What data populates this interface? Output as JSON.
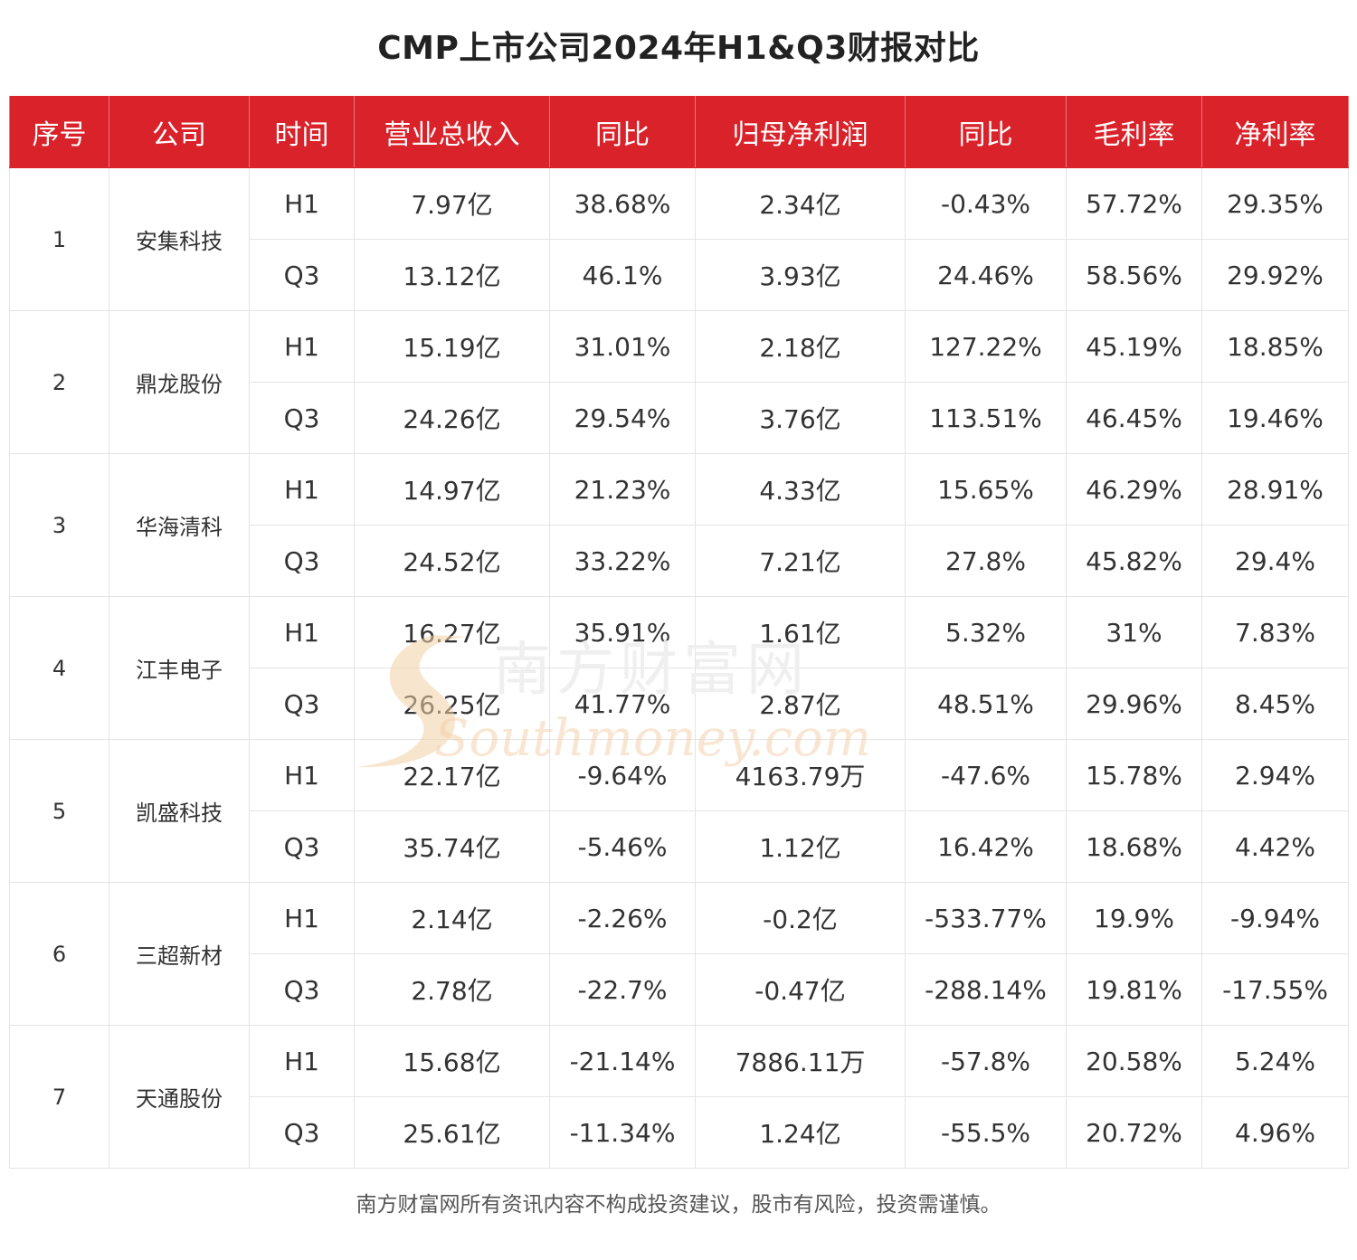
{
  "chart_data": {
    "type": "table",
    "title": "CMP上市公司2024年H1&Q3财报对比",
    "columns": [
      "序号",
      "公司",
      "时间",
      "营业总收入",
      "同比",
      "归母净利润",
      "同比",
      "毛利率",
      "净利率"
    ],
    "companies": [
      {
        "index": "1",
        "name": "安集科技",
        "rows": [
          {
            "period": "H1",
            "revenue": "7.97亿",
            "revenue_yoy": "38.68%",
            "net_profit": "2.34亿",
            "profit_yoy": "-0.43%",
            "gross_margin": "57.72%",
            "net_margin": "29.35%"
          },
          {
            "period": "Q3",
            "revenue": "13.12亿",
            "revenue_yoy": "46.1%",
            "net_profit": "3.93亿",
            "profit_yoy": "24.46%",
            "gross_margin": "58.56%",
            "net_margin": "29.92%"
          }
        ]
      },
      {
        "index": "2",
        "name": "鼎龙股份",
        "rows": [
          {
            "period": "H1",
            "revenue": "15.19亿",
            "revenue_yoy": "31.01%",
            "net_profit": "2.18亿",
            "profit_yoy": "127.22%",
            "gross_margin": "45.19%",
            "net_margin": "18.85%"
          },
          {
            "period": "Q3",
            "revenue": "24.26亿",
            "revenue_yoy": "29.54%",
            "net_profit": "3.76亿",
            "profit_yoy": "113.51%",
            "gross_margin": "46.45%",
            "net_margin": "19.46%"
          }
        ]
      },
      {
        "index": "3",
        "name": "华海清科",
        "rows": [
          {
            "period": "H1",
            "revenue": "14.97亿",
            "revenue_yoy": "21.23%",
            "net_profit": "4.33亿",
            "profit_yoy": "15.65%",
            "gross_margin": "46.29%",
            "net_margin": "28.91%"
          },
          {
            "period": "Q3",
            "revenue": "24.52亿",
            "revenue_yoy": "33.22%",
            "net_profit": "7.21亿",
            "profit_yoy": "27.8%",
            "gross_margin": "45.82%",
            "net_margin": "29.4%"
          }
        ]
      },
      {
        "index": "4",
        "name": "江丰电子",
        "rows": [
          {
            "period": "H1",
            "revenue": "16.27亿",
            "revenue_yoy": "35.91%",
            "net_profit": "1.61亿",
            "profit_yoy": "5.32%",
            "gross_margin": "31%",
            "net_margin": "7.83%"
          },
          {
            "period": "Q3",
            "revenue": "26.25亿",
            "revenue_yoy": "41.77%",
            "net_profit": "2.87亿",
            "profit_yoy": "48.51%",
            "gross_margin": "29.96%",
            "net_margin": "8.45%"
          }
        ]
      },
      {
        "index": "5",
        "name": "凯盛科技",
        "rows": [
          {
            "period": "H1",
            "revenue": "22.17亿",
            "revenue_yoy": "-9.64%",
            "net_profit": "4163.79万",
            "profit_yoy": "-47.6%",
            "gross_margin": "15.78%",
            "net_margin": "2.94%"
          },
          {
            "period": "Q3",
            "revenue": "35.74亿",
            "revenue_yoy": "-5.46%",
            "net_profit": "1.12亿",
            "profit_yoy": "16.42%",
            "gross_margin": "18.68%",
            "net_margin": "4.42%"
          }
        ]
      },
      {
        "index": "6",
        "name": "三超新材",
        "rows": [
          {
            "period": "H1",
            "revenue": "2.14亿",
            "revenue_yoy": "-2.26%",
            "net_profit": "-0.2亿",
            "profit_yoy": "-533.77%",
            "gross_margin": "19.9%",
            "net_margin": "-9.94%"
          },
          {
            "period": "Q3",
            "revenue": "2.78亿",
            "revenue_yoy": "-22.7%",
            "net_profit": "-0.47亿",
            "profit_yoy": "-288.14%",
            "gross_margin": "19.81%",
            "net_margin": "-17.55%"
          }
        ]
      },
      {
        "index": "7",
        "name": "天通股份",
        "rows": [
          {
            "period": "H1",
            "revenue": "15.68亿",
            "revenue_yoy": "-21.14%",
            "net_profit": "7886.11万",
            "profit_yoy": "-57.8%",
            "gross_margin": "20.58%",
            "net_margin": "5.24%"
          },
          {
            "period": "Q3",
            "revenue": "25.61亿",
            "revenue_yoy": "-11.34%",
            "net_profit": "1.24亿",
            "profit_yoy": "-55.5%",
            "gross_margin": "20.72%",
            "net_margin": "4.96%"
          }
        ]
      }
    ]
  },
  "watermark": {
    "cn": "南方财富网",
    "en": "Southmoney.com",
    "color": "#f3cfa6"
  },
  "footer": {
    "disclaimer": "南方财富网所有资讯内容不构成投资建议，股市有风险，投资需谨慎。"
  },
  "colors": {
    "header_bg": "#d9222a",
    "header_text": "#ffffff",
    "grid": "#e4e4e4",
    "cell_text": "#333333"
  }
}
